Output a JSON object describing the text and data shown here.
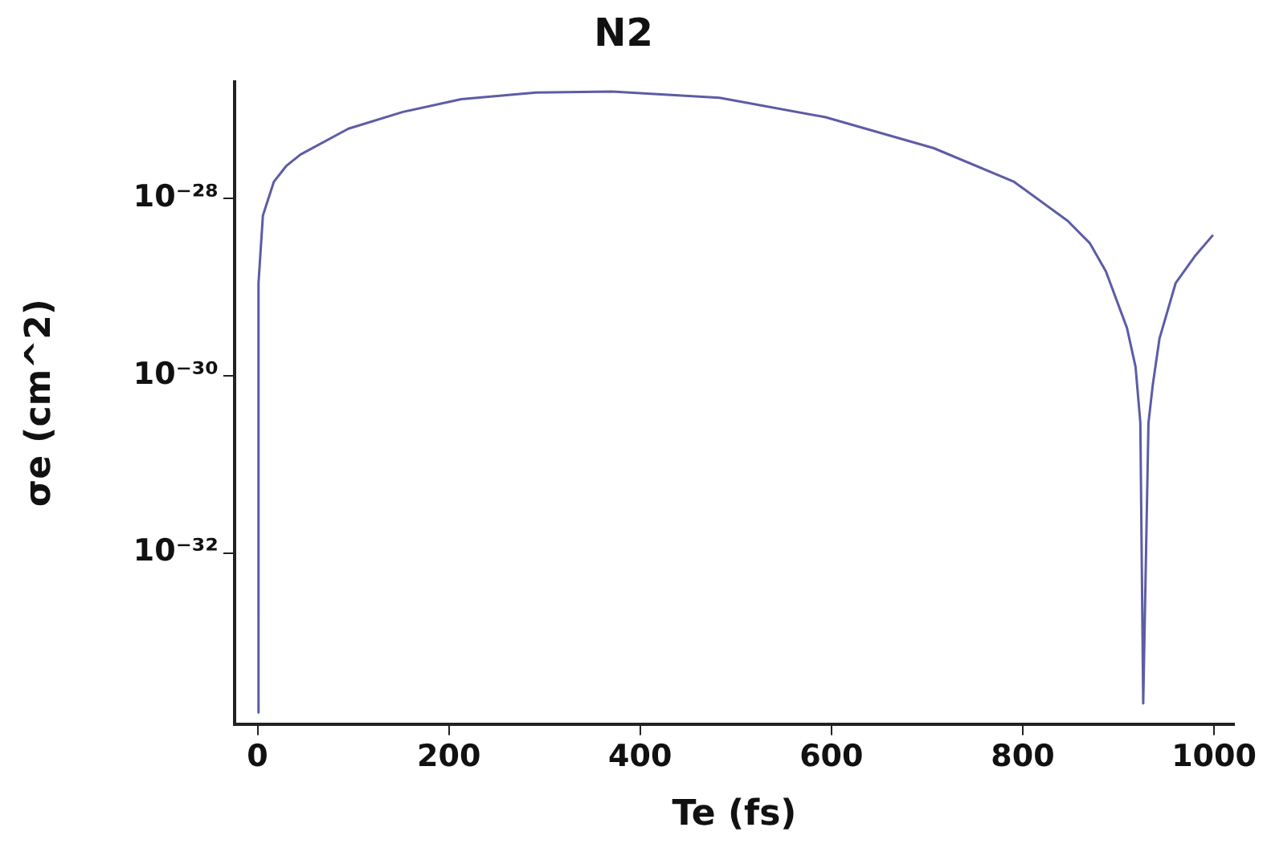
{
  "chart_data": {
    "type": "line",
    "title": "N2",
    "xlabel": "Te (fs)",
    "ylabel": "σe (cm^2)",
    "log": "y",
    "grid": false,
    "legend": false,
    "marker": "none",
    "line_style": "solid",
    "xlim": [
      -24,
      1021
    ],
    "xticks": [
      0,
      200,
      400,
      600,
      800,
      1000
    ],
    "ylim": [
      1.17e-34,
      2.1e-27
    ],
    "yticks": [
      {
        "value": 1e-28,
        "label": "10⁻²⁸"
      },
      {
        "value": 1e-30,
        "label": "10⁻³⁰"
      },
      {
        "value": 1e-32,
        "label": "10⁻³²"
      }
    ],
    "series": [
      {
        "color": "#5c5ca6",
        "x": [
          0,
          1,
          5.6,
          17,
          30,
          45,
          95,
          152,
          213,
          291,
          370,
          483,
          594,
          707,
          791,
          847,
          870,
          887,
          909,
          918,
          923,
          926,
          931.5,
          936,
          943,
          960,
          980,
          999
        ],
        "values": [
          1.58e-34,
          1.12e-29,
          6.46e-29,
          1.55e-28,
          2.34e-28,
          3.16e-28,
          6.17e-28,
          9.55e-28,
          1.33e-27,
          1.58e-27,
          1.62e-27,
          1.38e-27,
          8.32e-28,
          3.72e-28,
          1.55e-28,
          5.62e-29,
          3.16e-29,
          1.51e-29,
          3.47e-30,
          1.26e-30,
          2.95e-31,
          2e-34,
          2.95e-31,
          7.9e-31,
          2.63e-30,
          1.12e-29,
          2.24e-29,
          3.89e-29
        ]
      }
    ]
  }
}
